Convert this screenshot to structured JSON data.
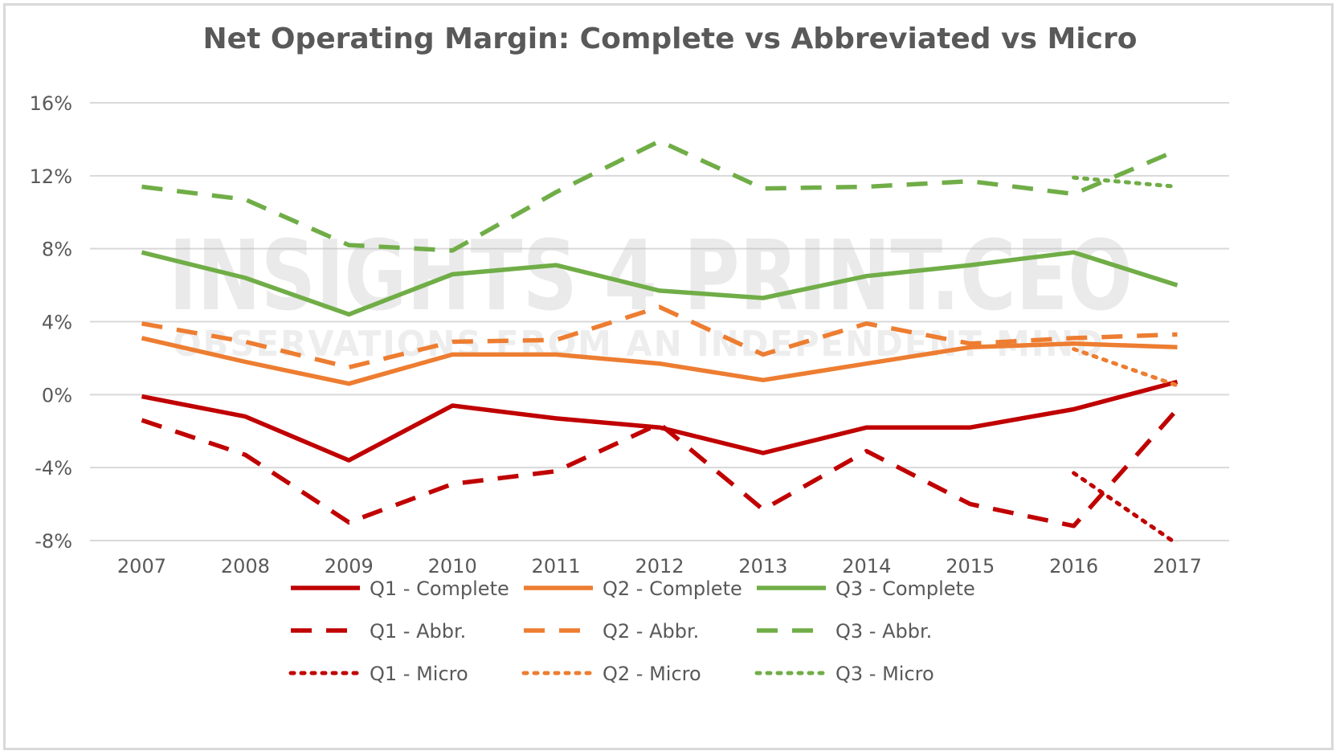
{
  "chart_data": {
    "type": "line",
    "title": "Net Operating Margin: Complete vs Abbreviated vs Micro",
    "xlabel": "",
    "ylabel": "",
    "categories": [
      "2007",
      "2008",
      "2009",
      "2010",
      "2011",
      "2012",
      "2013",
      "2014",
      "2015",
      "2016",
      "2017"
    ],
    "ylim": [
      -8,
      16
    ],
    "yticks": [
      -8,
      -4,
      0,
      4,
      8,
      12,
      16
    ],
    "ytick_labels": [
      "-8%",
      "-4%",
      "0%",
      "4%",
      "8%",
      "12%",
      "16%"
    ],
    "grid": "horizontal",
    "legend_position": "bottom",
    "watermark": [
      "INSIGHTS 4 PRINT.CEO",
      "OBSERVATIONS FROM AN INDEPENDENT MIND"
    ],
    "series": [
      {
        "name": "Q1 - Complete",
        "color": "#c00000",
        "style": "solid",
        "values": [
          -0.1,
          -1.2,
          -3.6,
          -0.6,
          -1.3,
          -1.8,
          -3.2,
          -1.8,
          -1.8,
          -0.8,
          0.7
        ]
      },
      {
        "name": "Q2 - Complete",
        "color": "#ed7d31",
        "style": "solid",
        "values": [
          3.1,
          1.8,
          0.6,
          2.2,
          2.2,
          1.7,
          0.8,
          1.7,
          2.6,
          2.8,
          2.6
        ]
      },
      {
        "name": "Q3 - Complete",
        "color": "#70ad47",
        "style": "solid",
        "values": [
          7.8,
          6.4,
          4.4,
          6.6,
          7.1,
          5.7,
          5.3,
          6.5,
          7.1,
          7.8,
          6.0
        ]
      },
      {
        "name": "Q1 - Abbr.",
        "color": "#c00000",
        "style": "dashed",
        "values": [
          -1.4,
          -3.3,
          -7.0,
          -4.9,
          -4.2,
          -1.6,
          -6.3,
          -3.1,
          -6.0,
          -7.2,
          -0.8
        ]
      },
      {
        "name": "Q2 - Abbr.",
        "color": "#ed7d31",
        "style": "dashed",
        "values": [
          3.9,
          2.9,
          1.5,
          2.9,
          3.0,
          4.8,
          2.2,
          3.9,
          2.8,
          3.1,
          3.3
        ]
      },
      {
        "name": "Q3 - Abbr.",
        "color": "#70ad47",
        "style": "dashed",
        "values": [
          11.4,
          10.7,
          8.2,
          7.9,
          11.1,
          13.9,
          11.3,
          11.4,
          11.7,
          11.0,
          13.4
        ]
      },
      {
        "name": "Q1 - Micro",
        "color": "#c00000",
        "style": "dotted",
        "values": [
          null,
          null,
          null,
          null,
          null,
          null,
          null,
          null,
          null,
          -4.3,
          -8.2
        ]
      },
      {
        "name": "Q2 - Micro",
        "color": "#ed7d31",
        "style": "dotted",
        "values": [
          null,
          null,
          null,
          null,
          null,
          null,
          null,
          null,
          null,
          2.5,
          0.5
        ]
      },
      {
        "name": "Q3 - Micro",
        "color": "#70ad47",
        "style": "dotted",
        "values": [
          null,
          null,
          null,
          null,
          null,
          null,
          null,
          null,
          null,
          11.9,
          11.4
        ]
      }
    ]
  }
}
